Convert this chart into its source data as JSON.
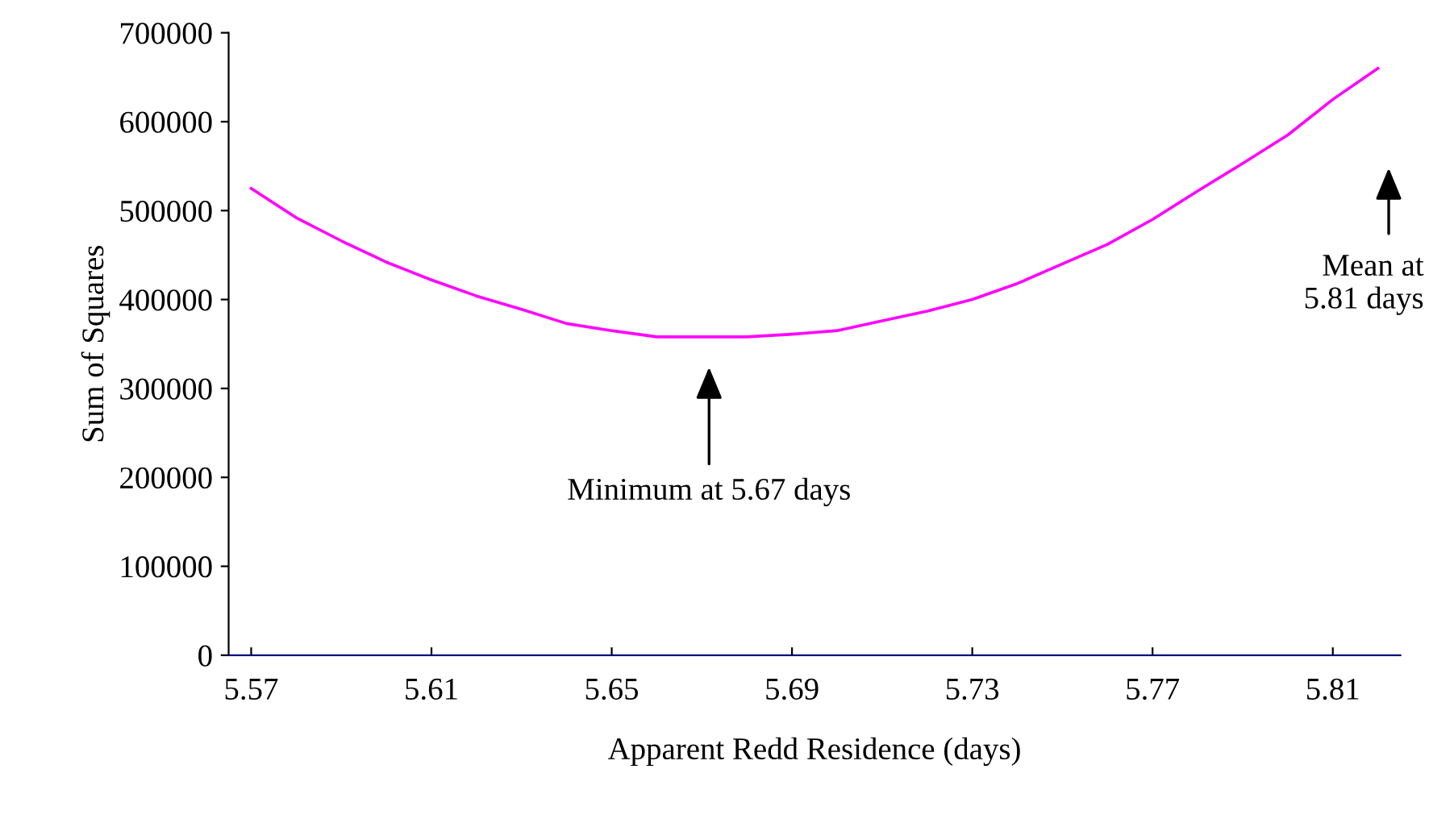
{
  "chart_data": {
    "type": "line",
    "xlabel": "Apparent Redd Residence (days)",
    "ylabel": "Sum of Squares",
    "x": [
      5.57,
      5.58,
      5.59,
      5.6,
      5.61,
      5.62,
      5.63,
      5.64,
      5.65,
      5.66,
      5.67,
      5.68,
      5.69,
      5.7,
      5.71,
      5.72,
      5.73,
      5.74,
      5.75,
      5.76,
      5.77,
      5.78,
      5.79,
      5.8,
      5.81,
      5.82
    ],
    "series": [
      {
        "color": "#ff00ff",
        "values": [
          525000,
          492000,
          466000,
          442000,
          422000,
          404000,
          389000,
          373000,
          365000,
          358000,
          358000,
          358000,
          361000,
          365000,
          376000,
          387000,
          400000,
          418000,
          440000,
          462000,
          490000,
          522000,
          553000,
          585000,
          625000,
          660000
        ]
      }
    ],
    "xlim": [
      5.565,
      5.825
    ],
    "xticks": [
      {
        "value": 5.57,
        "label": "5.57"
      },
      {
        "value": 5.61,
        "label": "5.61"
      },
      {
        "value": 5.65,
        "label": "5.65"
      },
      {
        "value": 5.69,
        "label": "5.69"
      },
      {
        "value": 5.73,
        "label": "5.73"
      },
      {
        "value": 5.77,
        "label": "5.77"
      },
      {
        "value": 5.81,
        "label": "5.81"
      }
    ],
    "ylim": [
      0,
      700000
    ],
    "yticks": [
      0,
      100000,
      200000,
      300000,
      400000,
      500000,
      600000,
      700000
    ],
    "annotations": [
      "Minimum at 5.67 days",
      "Mean at\n5.81 days"
    ],
    "grid": false,
    "legend": false,
    "marker": "none",
    "line_style": "solid"
  }
}
